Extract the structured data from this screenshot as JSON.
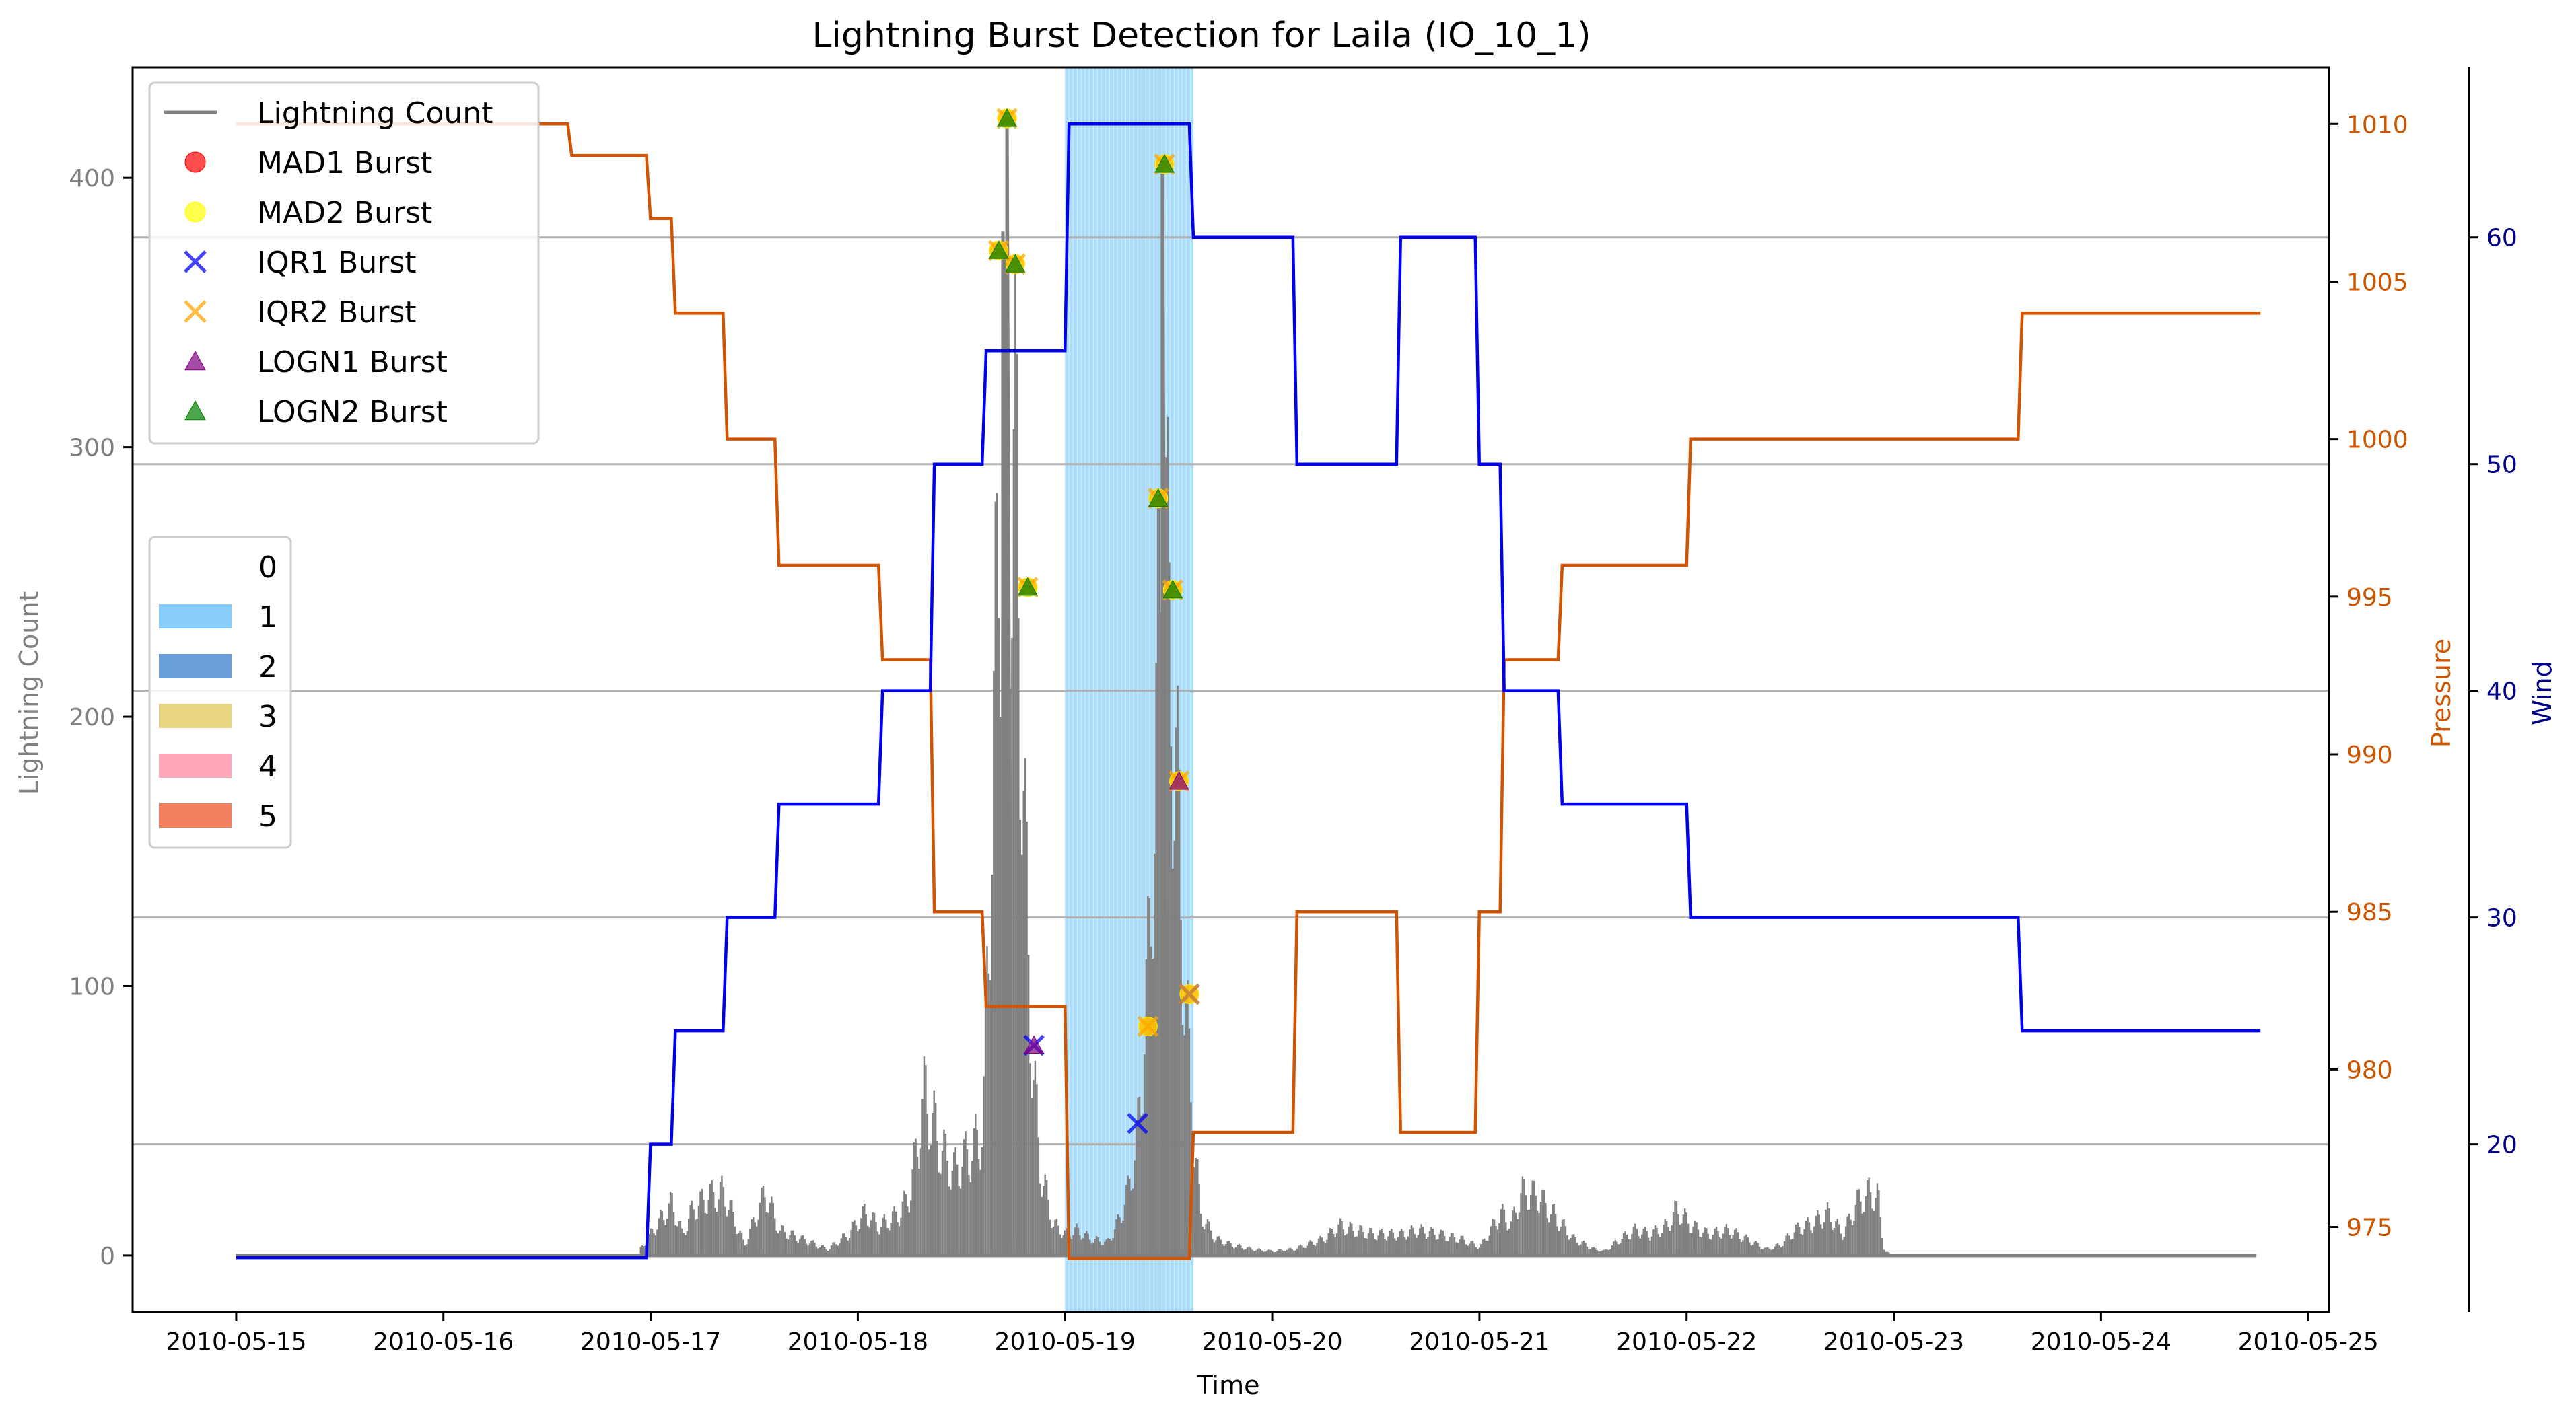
{
  "chart_data": {
    "type": "line",
    "title": "Lightning Burst Detection for Laila (IO_10_1)",
    "xlabel": "Time",
    "ylabel_left": "Lightning Count",
    "ylabel_pressure": "Pressure",
    "ylabel_wind": "Wind",
    "x_ticks": [
      "2010-05-15",
      "2010-05-16",
      "2010-05-17",
      "2010-05-18",
      "2010-05-19",
      "2010-05-20",
      "2010-05-21",
      "2010-05-22",
      "2010-05-23",
      "2010-05-24",
      "2010-05-25"
    ],
    "xlim_days": [
      -0.5,
      10.1
    ],
    "y_left": {
      "ticks": [
        0,
        100,
        200,
        300,
        400
      ],
      "lim": [
        -21,
        441
      ]
    },
    "y_pressure": {
      "ticks": [
        975,
        980,
        985,
        990,
        995,
        1000,
        1005,
        1010
      ],
      "lim": [
        972.3,
        1011.8
      ]
    },
    "y_wind": {
      "ticks": [
        20,
        30,
        40,
        50,
        60
      ],
      "lim": [
        12.6,
        67.5
      ]
    },
    "grid": "horizontal lines at wind ticks",
    "colors": {
      "lightning": "#808080",
      "pressure": "#d35400",
      "wind": "#0000ee",
      "category_1": "#87cefa",
      "left_axis_text": "#808080",
      "pressure_axis_text": "#cc5500",
      "wind_axis_text": "#00008b"
    },
    "lightning_peaks": [
      {
        "t": 1.94,
        "v": 2
      },
      {
        "t": 2.1,
        "v": 25
      },
      {
        "t": 2.15,
        "v": 10
      },
      {
        "t": 2.2,
        "v": 22
      },
      {
        "t": 2.28,
        "v": 28
      },
      {
        "t": 2.35,
        "v": 30
      },
      {
        "t": 2.45,
        "v": 5
      },
      {
        "t": 2.55,
        "v": 30
      },
      {
        "t": 2.62,
        "v": 12
      },
      {
        "t": 2.72,
        "v": 8
      },
      {
        "t": 2.85,
        "v": 3
      },
      {
        "t": 2.95,
        "v": 10
      },
      {
        "t": 3.03,
        "v": 20
      },
      {
        "t": 3.1,
        "v": 14
      },
      {
        "t": 3.2,
        "v": 20
      },
      {
        "t": 3.25,
        "v": 30
      },
      {
        "t": 3.32,
        "v": 77
      },
      {
        "t": 3.4,
        "v": 50
      },
      {
        "t": 3.46,
        "v": 40
      },
      {
        "t": 3.5,
        "v": 45
      },
      {
        "t": 3.55,
        "v": 50
      },
      {
        "t": 3.6,
        "v": 60
      },
      {
        "t": 3.64,
        "v": 200
      },
      {
        "t": 3.68,
        "v": 360
      },
      {
        "t": 3.72,
        "v": 380
      },
      {
        "t": 3.76,
        "v": 370
      },
      {
        "t": 3.8,
        "v": 200
      },
      {
        "t": 3.84,
        "v": 90
      },
      {
        "t": 3.88,
        "v": 40
      },
      {
        "t": 3.94,
        "v": 15
      },
      {
        "t": 4.0,
        "v": 10
      },
      {
        "t": 4.05,
        "v": 12
      },
      {
        "t": 4.12,
        "v": 8
      },
      {
        "t": 4.2,
        "v": 6
      },
      {
        "t": 4.25,
        "v": 15
      },
      {
        "t": 4.3,
        "v": 30
      },
      {
        "t": 4.35,
        "v": 60
      },
      {
        "t": 4.4,
        "v": 140
      },
      {
        "t": 4.44,
        "v": 260
      },
      {
        "t": 4.47,
        "v": 400
      },
      {
        "t": 4.5,
        "v": 280
      },
      {
        "t": 4.53,
        "v": 240
      },
      {
        "t": 4.56,
        "v": 160
      },
      {
        "t": 4.6,
        "v": 80
      },
      {
        "t": 4.65,
        "v": 20
      },
      {
        "t": 4.72,
        "v": 8
      },
      {
        "t": 4.8,
        "v": 5
      },
      {
        "t": 4.9,
        "v": 3
      },
      {
        "t": 5.0,
        "v": 2
      },
      {
        "t": 5.1,
        "v": 3
      },
      {
        "t": 5.25,
        "v": 8
      },
      {
        "t": 5.32,
        "v": 14
      },
      {
        "t": 5.4,
        "v": 12
      },
      {
        "t": 5.5,
        "v": 10
      },
      {
        "t": 5.62,
        "v": 10
      },
      {
        "t": 5.7,
        "v": 12
      },
      {
        "t": 5.8,
        "v": 10
      },
      {
        "t": 5.9,
        "v": 8
      },
      {
        "t": 6.0,
        "v": 4
      },
      {
        "t": 6.1,
        "v": 20
      },
      {
        "t": 6.15,
        "v": 15
      },
      {
        "t": 6.2,
        "v": 30
      },
      {
        "t": 6.28,
        "v": 28
      },
      {
        "t": 6.35,
        "v": 20
      },
      {
        "t": 6.45,
        "v": 8
      },
      {
        "t": 6.55,
        "v": 3
      },
      {
        "t": 6.6,
        "v": 2
      },
      {
        "t": 6.68,
        "v": 8
      },
      {
        "t": 6.75,
        "v": 12
      },
      {
        "t": 6.82,
        "v": 10
      },
      {
        "t": 6.9,
        "v": 14
      },
      {
        "t": 6.95,
        "v": 22
      },
      {
        "t": 7.02,
        "v": 14
      },
      {
        "t": 7.1,
        "v": 10
      },
      {
        "t": 7.2,
        "v": 12
      },
      {
        "t": 7.28,
        "v": 8
      },
      {
        "t": 7.38,
        "v": 3
      },
      {
        "t": 7.45,
        "v": 5
      },
      {
        "t": 7.52,
        "v": 12
      },
      {
        "t": 7.6,
        "v": 15
      },
      {
        "t": 7.68,
        "v": 20
      },
      {
        "t": 7.75,
        "v": 10
      },
      {
        "t": 7.82,
        "v": 25
      },
      {
        "t": 7.88,
        "v": 30
      },
      {
        "t": 7.92,
        "v": 28
      },
      {
        "t": 7.95,
        "v": 2
      },
      {
        "t": 8.0,
        "v": 0
      }
    ],
    "pressure_steps": [
      {
        "t": 0.0,
        "v": 1010
      },
      {
        "t": 1.6,
        "v": 1009
      },
      {
        "t": 1.98,
        "v": 1007
      },
      {
        "t": 2.1,
        "v": 1004
      },
      {
        "t": 2.35,
        "v": 1000
      },
      {
        "t": 2.6,
        "v": 996
      },
      {
        "t": 3.1,
        "v": 993
      },
      {
        "t": 3.35,
        "v": 985
      },
      {
        "t": 3.6,
        "v": 982
      },
      {
        "t": 4.0,
        "v": 974
      },
      {
        "t": 4.6,
        "v": 978
      },
      {
        "t": 5.1,
        "v": 985
      },
      {
        "t": 5.6,
        "v": 978
      },
      {
        "t": 5.98,
        "v": 985
      },
      {
        "t": 6.1,
        "v": 993
      },
      {
        "t": 6.38,
        "v": 996
      },
      {
        "t": 7.0,
        "v": 1000
      },
      {
        "t": 8.6,
        "v": 1004
      },
      {
        "t": 9.75,
        "v": 1004
      }
    ],
    "wind_steps": [
      {
        "t": 0.0,
        "v": 15
      },
      {
        "t": 1.98,
        "v": 20
      },
      {
        "t": 2.1,
        "v": 25
      },
      {
        "t": 2.35,
        "v": 30
      },
      {
        "t": 2.6,
        "v": 35
      },
      {
        "t": 3.1,
        "v": 40
      },
      {
        "t": 3.35,
        "v": 50
      },
      {
        "t": 3.6,
        "v": 55
      },
      {
        "t": 4.0,
        "v": 65
      },
      {
        "t": 4.6,
        "v": 60
      },
      {
        "t": 5.1,
        "v": 50
      },
      {
        "t": 5.6,
        "v": 60
      },
      {
        "t": 5.98,
        "v": 50
      },
      {
        "t": 6.1,
        "v": 40
      },
      {
        "t": 6.38,
        "v": 35
      },
      {
        "t": 7.0,
        "v": 30
      },
      {
        "t": 8.6,
        "v": 25
      },
      {
        "t": 9.75,
        "v": 25
      }
    ],
    "category_span": {
      "category": "1",
      "start": 4.0,
      "end": 4.62
    },
    "bursts": [
      {
        "method": "MAD1 Burst",
        "points": [
          [
            3.68,
            373
          ],
          [
            3.72,
            422
          ],
          [
            3.76,
            368
          ],
          [
            3.82,
            248
          ],
          [
            4.4,
            85
          ],
          [
            4.45,
            281
          ],
          [
            4.48,
            405
          ],
          [
            4.52,
            247
          ],
          [
            4.55,
            176
          ],
          [
            4.6,
            97
          ]
        ]
      },
      {
        "method": "MAD2 Burst",
        "points": [
          [
            3.68,
            373
          ],
          [
            3.72,
            422
          ],
          [
            3.76,
            368
          ],
          [
            3.82,
            248
          ],
          [
            4.4,
            85
          ],
          [
            4.45,
            281
          ],
          [
            4.48,
            405
          ],
          [
            4.52,
            247
          ],
          [
            4.55,
            176
          ],
          [
            4.6,
            97
          ]
        ]
      },
      {
        "method": "IQR1 Burst",
        "points": [
          [
            3.85,
            78
          ],
          [
            4.35,
            49
          ],
          [
            4.6,
            97
          ]
        ]
      },
      {
        "method": "IQR2 Burst",
        "points": [
          [
            3.68,
            373
          ],
          [
            3.72,
            422
          ],
          [
            3.76,
            368
          ],
          [
            3.82,
            248
          ],
          [
            4.4,
            85
          ],
          [
            4.45,
            281
          ],
          [
            4.48,
            405
          ],
          [
            4.52,
            247
          ],
          [
            4.55,
            176
          ],
          [
            4.6,
            97
          ]
        ]
      },
      {
        "method": "LOGN1 Burst",
        "points": [
          [
            3.85,
            78
          ],
          [
            4.55,
            176
          ]
        ]
      },
      {
        "method": "LOGN2 Burst",
        "points": [
          [
            3.68,
            373
          ],
          [
            3.72,
            422
          ],
          [
            3.76,
            368
          ],
          [
            3.82,
            248
          ],
          [
            4.45,
            281
          ],
          [
            4.48,
            405
          ],
          [
            4.52,
            247
          ]
        ]
      }
    ],
    "legend_lines": [
      {
        "label": "Lightning Count",
        "marker": "line",
        "color": "#808080"
      },
      {
        "label": "MAD1 Burst",
        "marker": "circle",
        "color": "#ff0000"
      },
      {
        "label": "MAD2 Burst",
        "marker": "circle",
        "color": "#ffff00"
      },
      {
        "label": "IQR1 Burst",
        "marker": "x",
        "color": "#0000ff"
      },
      {
        "label": "IQR2 Burst",
        "marker": "x",
        "color": "#ffa500"
      },
      {
        "label": "LOGN1 Burst",
        "marker": "triangle",
        "color": "#800080"
      },
      {
        "label": "LOGN2 Burst",
        "marker": "triangle",
        "color": "#008000"
      }
    ],
    "legend_categories": [
      {
        "label": "0",
        "color": "#ffffff"
      },
      {
        "label": "1",
        "color": "#87cefa"
      },
      {
        "label": "2",
        "color": "#6a9ed9"
      },
      {
        "label": "3",
        "color": "#e8d582"
      },
      {
        "label": "4",
        "color": "#ffa6b8"
      },
      {
        "label": "5",
        "color": "#f2805e"
      }
    ]
  }
}
